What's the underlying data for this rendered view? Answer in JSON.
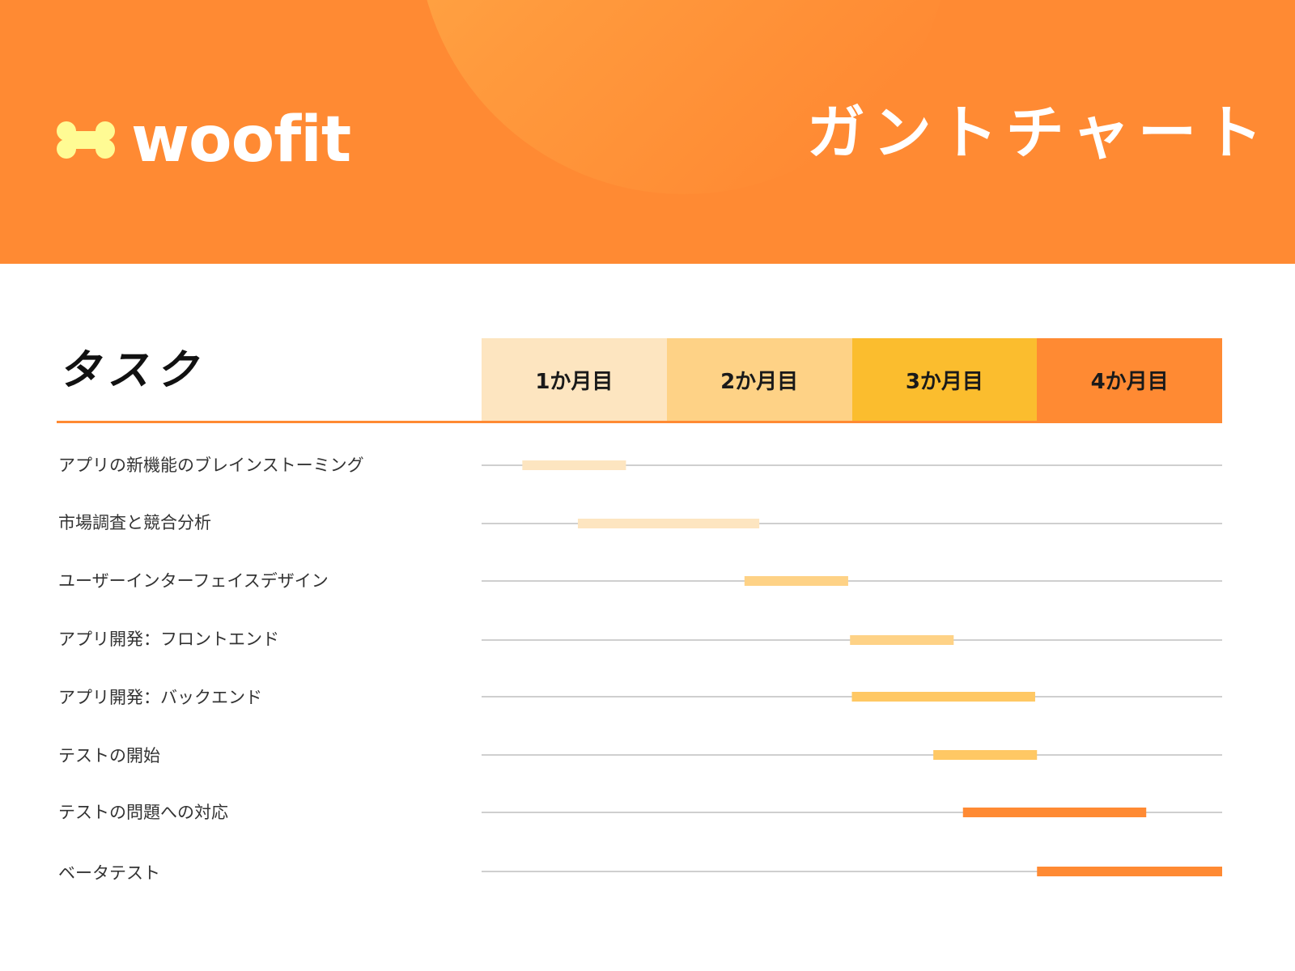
{
  "header": {
    "brand": "woofit",
    "title": "ガントチャート",
    "bg_color": "#ff8a33",
    "logo_icon": "bone-icon",
    "logo_color": "#fffb94"
  },
  "chart_data": {
    "type": "gantt",
    "task_header": "タスク",
    "months": [
      {
        "label": "1か月目",
        "color": "#fde5c0"
      },
      {
        "label": "2か月目",
        "color": "#fed286"
      },
      {
        "label": "3か月目",
        "color": "#fbbd2e"
      },
      {
        "label": "4か月目",
        "color": "#ff8a33"
      }
    ],
    "x_range_months": [
      0,
      4
    ],
    "tasks": [
      {
        "label": "アプリの新機能のブレインストーミング",
        "start": 0.22,
        "end": 0.78,
        "color": "#fde5c0"
      },
      {
        "label": "市場調査と競合分析",
        "start": 0.52,
        "end": 1.5,
        "color": "#fde5c0"
      },
      {
        "label": "ユーザーインターフェイスデザイン",
        "start": 1.42,
        "end": 1.98,
        "color": "#fed286"
      },
      {
        "label": "アプリ開発：フロントエンド",
        "start": 1.99,
        "end": 2.55,
        "color": "#fed286"
      },
      {
        "label": "アプリ開発：バックエンド",
        "start": 2.0,
        "end": 2.99,
        "color": "#ffc864"
      },
      {
        "label": "テストの開始",
        "start": 2.44,
        "end": 3.0,
        "color": "#ffc864"
      },
      {
        "label": "テストの問題への対応",
        "start": 2.6,
        "end": 3.59,
        "color": "#ff8a33"
      },
      {
        "label": "ベータテスト",
        "start": 3.0,
        "end": 4.0,
        "color": "#ff8a33"
      }
    ]
  }
}
